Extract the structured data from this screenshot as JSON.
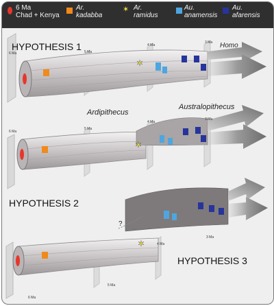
{
  "legend": {
    "items": [
      {
        "line1": "6 Ma",
        "line2": "Chad + Kenya",
        "italic": false,
        "color": "#e8352b",
        "shape": "oval"
      },
      {
        "line1": "Ar.",
        "line2": "kadabba",
        "italic": true,
        "color": "#f08a1c",
        "shape": "square"
      },
      {
        "line1": "Ar.",
        "line2": "ramidus",
        "italic": true,
        "color": "#f2e33a",
        "shape": "star"
      },
      {
        "line1": "Au.",
        "line2": "anamensis",
        "italic": true,
        "color": "#4ea6e0",
        "shape": "square"
      },
      {
        "line1": "Au.",
        "line2": "afarensis",
        "italic": true,
        "color": "#27349b",
        "shape": "square"
      }
    ]
  },
  "hypotheses": [
    {
      "label": "HYPOTHESIS 1",
      "time_labels": [
        "6 Ma",
        "5 Ma",
        "4 Ma",
        "3 Ma"
      ],
      "genus_labels": [
        "Ardipithecus",
        "Australopithecus"
      ],
      "homo_label": "Homo"
    },
    {
      "label": "HYPOTHESIS 2",
      "time_labels": [
        "6 Ma",
        "5 Ma",
        "4 Ma",
        "3 Ma"
      ],
      "question_mark": "?"
    },
    {
      "label": "HYPOTHESIS 3",
      "time_labels": [
        "6 Ma",
        "5 Ma",
        "4 Ma",
        "3 Ma"
      ]
    }
  ],
  "colors": {
    "tube": "#d4d0d1",
    "arrow": "#8a8a8a",
    "legend_bg": "#2f2f2f",
    "panel_bg": "#efefef"
  }
}
